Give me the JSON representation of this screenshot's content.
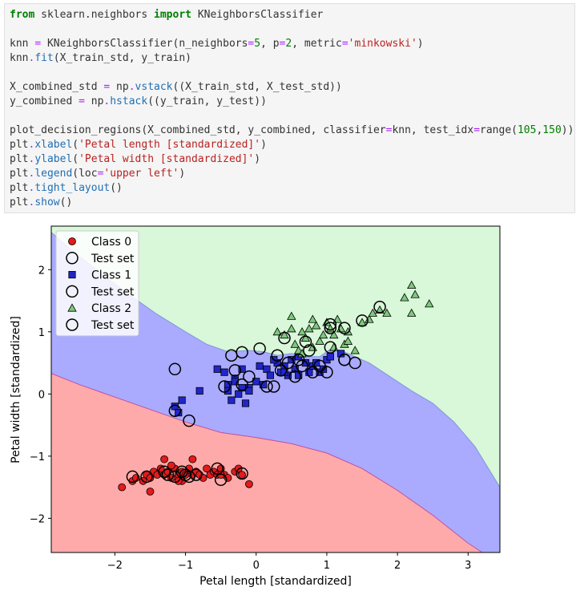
{
  "code_lines": [
    [
      {
        "t": "from",
        "c": "kw"
      },
      {
        "t": " sklearn.neighbors "
      },
      {
        "t": "import",
        "c": "kw"
      },
      {
        "t": " KNeighborsClassifier"
      }
    ],
    [],
    [
      {
        "t": "knn "
      },
      {
        "t": "=",
        "c": "op"
      },
      {
        "t": " KNeighborsClassifier(n_neighbors"
      },
      {
        "t": "=",
        "c": "op"
      },
      {
        "t": "5",
        "c": "num"
      },
      {
        "t": ", p"
      },
      {
        "t": "=",
        "c": "op"
      },
      {
        "t": "2",
        "c": "num"
      },
      {
        "t": ", metric"
      },
      {
        "t": "=",
        "c": "op"
      },
      {
        "t": "'minkowski'",
        "c": "str"
      },
      {
        "t": ")"
      }
    ],
    [
      {
        "t": "knn"
      },
      {
        "t": ".",
        "c": "op"
      },
      {
        "t": "fit",
        "c": "fn"
      },
      {
        "t": "(X_train_std, y_train)"
      }
    ],
    [],
    [
      {
        "t": "X_combined_std "
      },
      {
        "t": "=",
        "c": "op"
      },
      {
        "t": " np"
      },
      {
        "t": ".",
        "c": "op"
      },
      {
        "t": "vstack",
        "c": "fn"
      },
      {
        "t": "((X_train_std, X_test_std))"
      }
    ],
    [
      {
        "t": "y_combined "
      },
      {
        "t": "=",
        "c": "op"
      },
      {
        "t": " np"
      },
      {
        "t": ".",
        "c": "op"
      },
      {
        "t": "hstack",
        "c": "fn"
      },
      {
        "t": "((y_train, y_test))"
      }
    ],
    [],
    [
      {
        "t": "plot_decision_regions(X_combined_std, y_combined, classifier"
      },
      {
        "t": "=",
        "c": "op"
      },
      {
        "t": "knn, test_idx"
      },
      {
        "t": "=",
        "c": "op"
      },
      {
        "t": "range("
      },
      {
        "t": "105",
        "c": "num"
      },
      {
        "t": ","
      },
      {
        "t": "150",
        "c": "num"
      },
      {
        "t": "))"
      }
    ],
    [
      {
        "t": "plt"
      },
      {
        "t": ".",
        "c": "op"
      },
      {
        "t": "xlabel",
        "c": "fn"
      },
      {
        "t": "("
      },
      {
        "t": "'Petal length [standardized]'",
        "c": "str"
      },
      {
        "t": ")"
      }
    ],
    [
      {
        "t": "plt"
      },
      {
        "t": ".",
        "c": "op"
      },
      {
        "t": "ylabel",
        "c": "fn"
      },
      {
        "t": "("
      },
      {
        "t": "'Petal width [standardized]'",
        "c": "str"
      },
      {
        "t": ")"
      }
    ],
    [
      {
        "t": "plt"
      },
      {
        "t": ".",
        "c": "op"
      },
      {
        "t": "legend",
        "c": "fn"
      },
      {
        "t": "(loc"
      },
      {
        "t": "=",
        "c": "op"
      },
      {
        "t": "'upper left'",
        "c": "str"
      },
      {
        "t": ")"
      }
    ],
    [
      {
        "t": "plt"
      },
      {
        "t": ".",
        "c": "op"
      },
      {
        "t": "tight_layout",
        "c": "fn"
      },
      {
        "t": "()"
      }
    ],
    [
      {
        "t": "plt"
      },
      {
        "t": ".",
        "c": "op"
      },
      {
        "t": "show",
        "c": "fn"
      },
      {
        "t": "()"
      }
    ]
  ],
  "chart_data": {
    "type": "scatter",
    "title": "",
    "xlabel": "Petal length [standardized]",
    "ylabel": "Petal width [standardized]",
    "xlim": [
      -2.9,
      3.45
    ],
    "ylim": [
      -2.55,
      2.7
    ],
    "xticks": [
      -2,
      -1,
      0,
      1,
      2,
      3
    ],
    "yticks": [
      -2,
      -1,
      0,
      1,
      2
    ],
    "tick_label_minus": "−",
    "legend_position": "upper left",
    "legend": [
      {
        "label": "Class 0",
        "marker": "circle",
        "color": "#e41a1c"
      },
      {
        "label": "Test set",
        "marker": "ring"
      },
      {
        "label": "Class 1",
        "marker": "square",
        "color": "#2026c8"
      },
      {
        "label": "Test set",
        "marker": "ring"
      },
      {
        "label": "Class 2",
        "marker": "triangle",
        "color": "#7cc97c"
      },
      {
        "label": "Test set",
        "marker": "ring"
      }
    ],
    "regions": {
      "colors": {
        "class0": "#ffaaaa",
        "class1": "#aaaaff",
        "class2": "#d9f7d9"
      },
      "boundary_0_1": [
        [
          -2.9,
          0.33
        ],
        [
          -2.5,
          0.15
        ],
        [
          -2.0,
          -0.05
        ],
        [
          -1.5,
          -0.25
        ],
        [
          -1.0,
          -0.45
        ],
        [
          -0.5,
          -0.62
        ],
        [
          0.0,
          -0.7
        ],
        [
          0.5,
          -0.8
        ],
        [
          1.0,
          -0.95
        ],
        [
          1.5,
          -1.2
        ],
        [
          2.0,
          -1.55
        ],
        [
          2.5,
          -1.95
        ],
        [
          3.0,
          -2.4
        ],
        [
          3.2,
          -2.55
        ]
      ],
      "boundary_1_2": [
        [
          -2.9,
          2.6
        ],
        [
          -2.6,
          2.3
        ],
        [
          -2.2,
          1.95
        ],
        [
          -1.8,
          1.6
        ],
        [
          -1.4,
          1.28
        ],
        [
          -1.0,
          1.0
        ],
        [
          -0.7,
          0.8
        ],
        [
          -0.4,
          0.68
        ],
        [
          -0.1,
          0.7
        ],
        [
          0.1,
          0.68
        ],
        [
          0.3,
          0.62
        ],
        [
          0.5,
          0.65
        ],
        [
          0.7,
          0.6
        ],
        [
          0.9,
          0.6
        ],
        [
          1.05,
          0.72
        ],
        [
          1.2,
          0.7
        ],
        [
          1.4,
          0.6
        ],
        [
          1.6,
          0.5
        ],
        [
          1.8,
          0.35
        ],
        [
          2.0,
          0.2
        ],
        [
          2.2,
          0.05
        ],
        [
          2.5,
          -0.15
        ],
        [
          2.8,
          -0.45
        ],
        [
          3.1,
          -0.85
        ],
        [
          3.45,
          -1.5
        ]
      ]
    },
    "series": [
      {
        "name": "Class 0",
        "marker": "circle",
        "color": "#e41a1c",
        "x": [
          -1.9,
          -1.75,
          -1.7,
          -1.6,
          -1.55,
          -1.5,
          -1.45,
          -1.4,
          -1.35,
          -1.3,
          -1.25,
          -1.2,
          -1.15,
          -1.1,
          -1.05,
          -1.0,
          -0.95,
          -0.9,
          -0.85,
          -0.8,
          -0.75,
          -0.7,
          -0.65,
          -0.6,
          -0.55,
          -0.5,
          -0.45,
          -0.4,
          -0.3,
          -0.25,
          -0.2,
          -0.1,
          -1.3,
          -1.2,
          -1.05,
          -0.9,
          -1.5,
          -1.1,
          -0.5
        ],
        "y": [
          -1.5,
          -1.4,
          -1.35,
          -1.4,
          -1.3,
          -1.35,
          -1.25,
          -1.3,
          -1.2,
          -1.3,
          -1.25,
          -1.35,
          -1.2,
          -1.3,
          -1.25,
          -1.3,
          -1.2,
          -1.3,
          -1.25,
          -1.3,
          -1.35,
          -1.2,
          -1.3,
          -1.25,
          -1.3,
          -1.2,
          -1.3,
          -1.35,
          -1.25,
          -1.2,
          -1.3,
          -1.45,
          -1.05,
          -1.15,
          -1.4,
          -1.05,
          -1.57,
          -1.4,
          -1.3
        ]
      },
      {
        "name": "Class 1",
        "marker": "square",
        "color": "#2026c8",
        "x": [
          -1.15,
          -1.05,
          -0.8,
          -0.55,
          -0.45,
          -0.4,
          -0.35,
          -0.3,
          -0.25,
          -0.2,
          -0.15,
          -0.1,
          0.0,
          0.05,
          0.15,
          0.2,
          0.3,
          0.35,
          0.4,
          0.45,
          0.5,
          0.55,
          0.6,
          0.7,
          0.75,
          0.8,
          0.9,
          0.95,
          1.0,
          1.05,
          -0.4,
          -0.3,
          -0.2,
          -0.1,
          0.1,
          0.25,
          0.4,
          0.6,
          0.85,
          1.2,
          -1.1
        ],
        "y": [
          -0.2,
          -0.1,
          0.05,
          0.4,
          0.35,
          0.15,
          -0.1,
          0.25,
          0.0,
          0.4,
          -0.15,
          0.1,
          0.2,
          0.45,
          0.4,
          0.3,
          0.5,
          0.35,
          0.45,
          0.3,
          0.55,
          0.4,
          0.3,
          0.5,
          0.35,
          0.45,
          0.35,
          0.4,
          0.55,
          0.6,
          0.05,
          0.2,
          0.1,
          0.05,
          0.15,
          0.55,
          0.35,
          0.6,
          0.5,
          0.65,
          -0.3
        ]
      },
      {
        "name": "Class 2",
        "marker": "triangle",
        "color": "#7cc97c",
        "x": [
          0.3,
          0.4,
          0.5,
          0.55,
          0.6,
          0.65,
          0.7,
          0.75,
          0.8,
          0.85,
          0.9,
          0.95,
          1.0,
          1.05,
          1.1,
          1.15,
          1.2,
          1.25,
          1.3,
          1.4,
          1.5,
          1.6,
          1.65,
          1.75,
          1.85,
          2.2,
          2.25,
          2.2,
          2.45,
          2.1,
          0.5,
          0.65,
          0.8,
          1.1,
          1.3
        ],
        "y": [
          1.0,
          0.95,
          1.05,
          0.8,
          0.7,
          1.0,
          0.9,
          1.05,
          0.75,
          1.1,
          0.85,
          0.95,
          1.15,
          1.05,
          0.95,
          1.2,
          1.05,
          0.8,
          1.0,
          0.7,
          1.15,
          1.2,
          1.3,
          1.35,
          1.3,
          1.75,
          1.6,
          1.3,
          1.45,
          1.55,
          1.25,
          0.65,
          1.2,
          0.75,
          0.85
        ]
      },
      {
        "name": "Test set",
        "marker": "ring",
        "x": [
          -1.75,
          -1.55,
          -1.3,
          -1.25,
          -1.15,
          -1.05,
          -1.0,
          -0.95,
          -0.85,
          -0.55,
          -0.5,
          -0.2,
          -1.15,
          -0.45,
          -0.3,
          -0.2,
          -0.1,
          0.15,
          0.25,
          0.35,
          0.45,
          0.55,
          0.65,
          0.8,
          0.9,
          1.0,
          1.25,
          1.4,
          -1.15,
          -0.95,
          0.6,
          0.75,
          1.05,
          1.25,
          0.3,
          -0.35,
          -0.2,
          0.05,
          0.4,
          0.7,
          1.05,
          1.25,
          1.5,
          1.75,
          1.05
        ],
        "y": [
          -1.33,
          -1.33,
          -1.25,
          -1.3,
          -1.33,
          -1.25,
          -1.3,
          -1.33,
          -1.3,
          -1.2,
          -1.38,
          -1.28,
          0.4,
          0.12,
          0.38,
          0.15,
          0.28,
          0.12,
          0.12,
          0.38,
          0.5,
          0.28,
          0.45,
          0.35,
          0.45,
          0.35,
          0.55,
          0.5,
          -0.27,
          -0.43,
          0.55,
          0.7,
          0.75,
          0.55,
          0.62,
          0.62,
          0.67,
          0.73,
          0.9,
          0.84,
          1.06,
          1.06,
          1.18,
          1.4,
          1.12
        ]
      }
    ]
  }
}
